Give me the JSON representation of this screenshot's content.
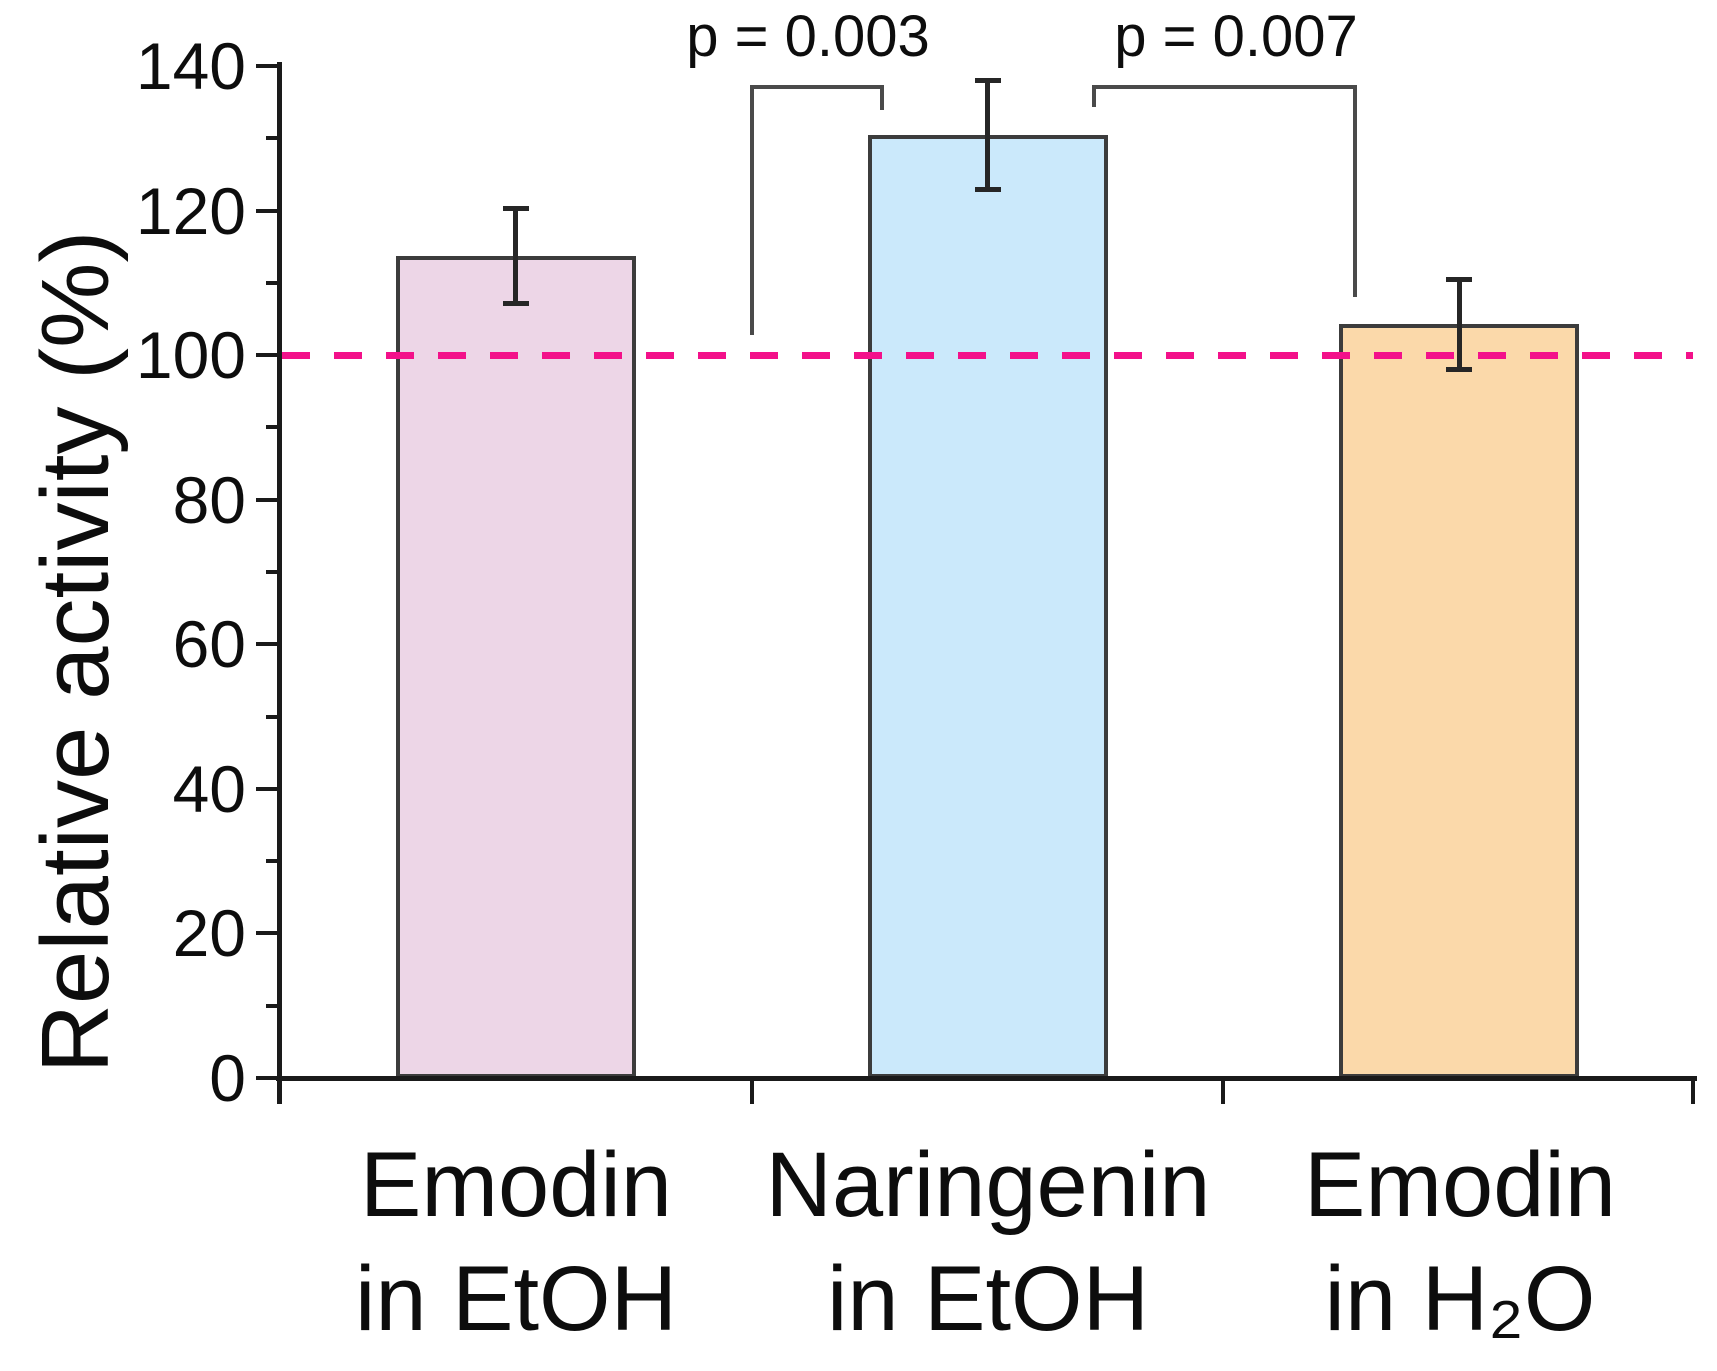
{
  "chart_data": {
    "type": "bar",
    "title": "",
    "ylabel": "Relative activity (%)",
    "xlabel": "",
    "ylim": [
      0,
      140
    ],
    "yticks": [
      0,
      20,
      40,
      60,
      80,
      100,
      120,
      140
    ],
    "minor_yticks": [
      10,
      30,
      50,
      70,
      90,
      110,
      130
    ],
    "categories": [
      "Emodin\nin EtOH",
      "Naringenin\nin EtOH",
      "Emodin\nin H₂O"
    ],
    "series": [
      {
        "name": "Relative activity (%)",
        "values": [
          113.7,
          130.4,
          104.3
        ],
        "errors": [
          6.6,
          7.6,
          6.3
        ]
      }
    ],
    "bar_colors": [
      "#edd6e7",
      "#cbe9fb",
      "#fbd9aa"
    ],
    "bar_edge_color": "#3c3c3c",
    "reference_line": {
      "y": 100,
      "style": "dashed",
      "color": "#f3118a"
    },
    "annotations": [
      {
        "label": "p = 0.003",
        "between": [
          "Emodin in EtOH",
          "Naringenin in EtOH"
        ]
      },
      {
        "label": "p = 0.007",
        "between": [
          "Naringenin in EtOH",
          "Emodin in H₂O"
        ]
      }
    ],
    "grid": false,
    "legend": false
  }
}
